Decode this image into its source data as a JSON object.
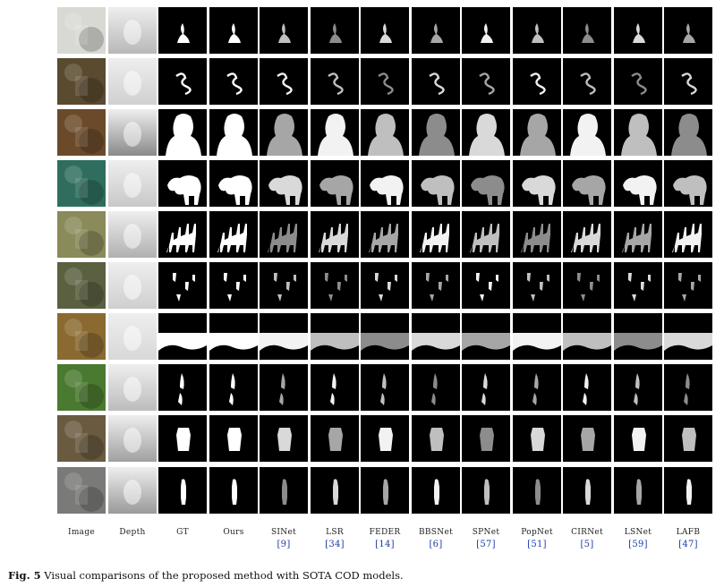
{
  "figure": {
    "columns": [
      {
        "label": "Image",
        "ref": ""
      },
      {
        "label": "Depth",
        "ref": ""
      },
      {
        "label": "GT",
        "ref": ""
      },
      {
        "label": "Ours",
        "ref": ""
      },
      {
        "label": "SINet",
        "ref": "[9]"
      },
      {
        "label": "LSR",
        "ref": "[34]"
      },
      {
        "label": "FEDER",
        "ref": "[14]"
      },
      {
        "label": "BBSNet",
        "ref": "[6]"
      },
      {
        "label": "SPNet",
        "ref": "[57]"
      },
      {
        "label": "PopNet",
        "ref": "[51]"
      },
      {
        "label": "CIRNet",
        "ref": "[5]"
      },
      {
        "label": "LSNet",
        "ref": "[59]"
      },
      {
        "label": "LAFB",
        "ref": "[47]"
      }
    ],
    "rows": [
      {
        "subject": "snow-animal",
        "image_color": "#d9d9d4",
        "depth_color": "#b8b8b8"
      },
      {
        "subject": "sea-snake",
        "image_color": "#5a4a30",
        "depth_color": "#d0d0d0"
      },
      {
        "subject": "statue-face",
        "image_color": "#6b4a2a",
        "depth_color": "#8a8a8a"
      },
      {
        "subject": "underwater-figure",
        "image_color": "#2f6e5e",
        "depth_color": "#c8c8c8"
      },
      {
        "subject": "giraffes",
        "image_color": "#8a8a5a",
        "depth_color": "#b0b0b0"
      },
      {
        "subject": "leaf-insects",
        "image_color": "#5a6040",
        "depth_color": "#cfcfcf"
      },
      {
        "subject": "grass",
        "image_color": "#8a6a30",
        "depth_color": "#d8d8d8"
      },
      {
        "subject": "bamboo-leaves",
        "image_color": "#4a7a30",
        "depth_color": "#bcbcbc"
      },
      {
        "subject": "tree-bark",
        "image_color": "#6a5a40",
        "depth_color": "#a0a0a0"
      },
      {
        "subject": "person-temple",
        "image_color": "#7a7a78",
        "depth_color": "#9a9a9a"
      }
    ],
    "caption_label": "Fig. 5",
    "caption_text": "Visual comparisons of the proposed method with SOTA COD models."
  }
}
